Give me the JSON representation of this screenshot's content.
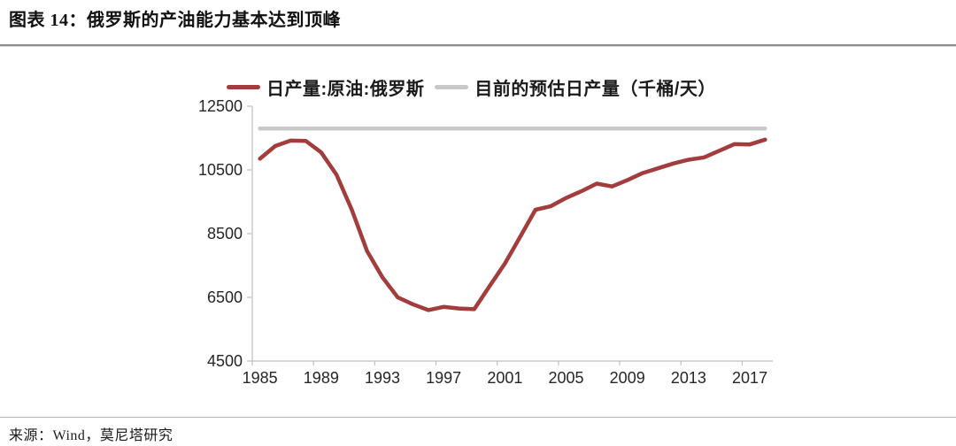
{
  "page": {
    "title": "图表 14：俄罗斯的产油能力基本达到顶峰",
    "source": "来源：Wind，莫尼塔研究"
  },
  "legend": [
    {
      "label": "日产量:原油:俄罗斯",
      "color": "#a33c3c"
    },
    {
      "label": "目前的预估日产量（千桶/天）",
      "color": "#c8c8c8"
    }
  ],
  "chart_data": {
    "type": "line",
    "title": "",
    "xlabel": "",
    "ylabel": "",
    "x": [
      1985,
      1986,
      1987,
      1988,
      1989,
      1990,
      1991,
      1992,
      1993,
      1994,
      1995,
      1996,
      1997,
      1998,
      1999,
      2000,
      2001,
      2002,
      2003,
      2004,
      2005,
      2006,
      2007,
      2008,
      2009,
      2010,
      2011,
      2012,
      2013,
      2014,
      2015,
      2016,
      2017,
      2018
    ],
    "series": [
      {
        "name": "日产量:原油:俄罗斯",
        "color": "#a33c3c",
        "values": [
          10850,
          11250,
          11420,
          11410,
          11050,
          10350,
          9250,
          7950,
          7130,
          6500,
          6280,
          6100,
          6200,
          6150,
          6130,
          6850,
          7560,
          8400,
          9250,
          9360,
          9620,
          9830,
          10070,
          9980,
          10180,
          10400,
          10550,
          10700,
          10820,
          10890,
          11100,
          11310,
          11300,
          11450
        ]
      },
      {
        "name": "目前的预估日产量（千桶/天）",
        "color": "#c8c8c8",
        "constant": 11800
      }
    ],
    "ylim": [
      4500,
      12500
    ],
    "yticks": [
      12500,
      10500,
      8500,
      6500,
      4500
    ],
    "xticklabels": [
      "1985",
      "1989",
      "1993",
      "1997",
      "2001",
      "2005",
      "2009",
      "2013",
      "2017"
    ],
    "xtick_interval": 4,
    "grid": false,
    "legend_position": "top",
    "axis_color": "#bfbfbf",
    "tick_text_color": "#262626"
  }
}
